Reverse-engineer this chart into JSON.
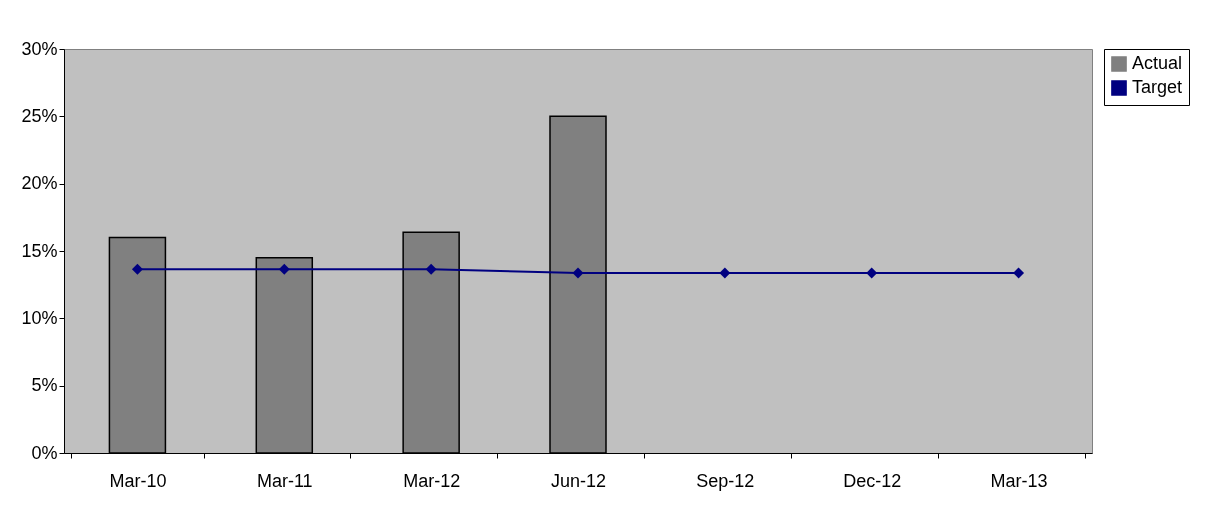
{
  "chart_data": {
    "type": "bar",
    "categories": [
      "Mar-10",
      "Mar-11",
      "Mar-12",
      "Jun-12",
      "Sep-12",
      "Dec-12",
      "Mar-13"
    ],
    "series": [
      {
        "name": "Actual",
        "color": "#808080",
        "values": [
          16.0,
          14.5,
          16.4,
          25.0,
          null,
          null,
          null
        ]
      },
      {
        "name": "Target",
        "type": "line",
        "color": "#000080",
        "marker": "diamond",
        "values": [
          13.64,
          13.64,
          13.64,
          13.37,
          13.37,
          13.37,
          13.37
        ]
      }
    ],
    "ylim": [
      0,
      30
    ],
    "yticks": [
      {
        "value": 0,
        "label": "0%"
      },
      {
        "value": 5,
        "label": "5%"
      },
      {
        "value": 10,
        "label": "10%"
      },
      {
        "value": 15,
        "label": "15%"
      },
      {
        "value": 20,
        "label": "20%"
      },
      {
        "value": 25,
        "label": "25%"
      },
      {
        "value": 30,
        "label": "30%"
      }
    ],
    "legend": "right"
  }
}
